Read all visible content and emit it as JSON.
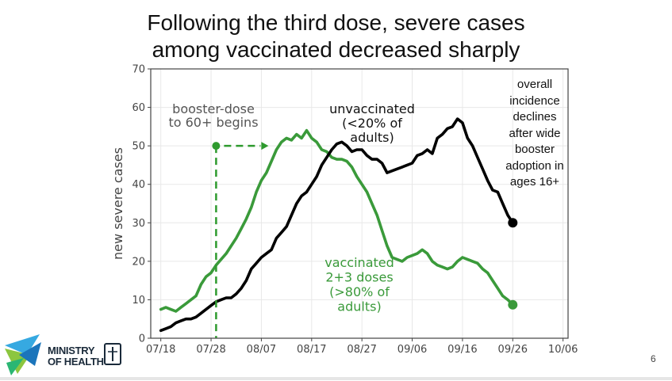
{
  "title": {
    "line1": "Following the third dose, severe cases",
    "line2": "among vaccinated decreased sharply"
  },
  "side_note": [
    "overall",
    "incidence",
    "declines",
    "after wide",
    "booster",
    "adoption in",
    "ages 16+"
  ],
  "page_number": "6",
  "logo": {
    "line1": "MINISTRY",
    "line2": "OF HEALTH"
  },
  "colors": {
    "unvaccinated": "#000000",
    "vaccinated": "#3a9a3a",
    "booster": "#2e9a2e",
    "axis": "#444444",
    "grid": "#e8e8e8"
  },
  "chart_data": {
    "type": "line",
    "ylabel": "new severe cases",
    "ylim": [
      0,
      70
    ],
    "yticks": [
      0,
      10,
      20,
      30,
      40,
      50,
      60,
      70
    ],
    "xlim": [
      -2,
      81
    ],
    "xticks": [
      {
        "day": 0,
        "label": "07/18"
      },
      {
        "day": 10,
        "label": "07/28"
      },
      {
        "day": 20,
        "label": "08/07"
      },
      {
        "day": 30,
        "label": "08/17"
      },
      {
        "day": 40,
        "label": "08/27"
      },
      {
        "day": 50,
        "label": "09/06"
      },
      {
        "day": 60,
        "label": "09/16"
      },
      {
        "day": 70,
        "label": "09/26"
      },
      {
        "day": 80,
        "label": "10/06"
      }
    ],
    "series": [
      {
        "key": "unvaccinated",
        "label_lines": [
          "unvaccinated",
          "(<20% of",
          "adults)"
        ],
        "values": [
          [
            0,
            2
          ],
          [
            1,
            2.5
          ],
          [
            2,
            3
          ],
          [
            3,
            4
          ],
          [
            4,
            4.5
          ],
          [
            5,
            5
          ],
          [
            6,
            5
          ],
          [
            7,
            5.5
          ],
          [
            8,
            6.5
          ],
          [
            9,
            7.5
          ],
          [
            10,
            8.5
          ],
          [
            11,
            9.5
          ],
          [
            12,
            10
          ],
          [
            13,
            10.5
          ],
          [
            14,
            10.5
          ],
          [
            15,
            11.5
          ],
          [
            16,
            13
          ],
          [
            17,
            15
          ],
          [
            18,
            18
          ],
          [
            19,
            19.5
          ],
          [
            20,
            21
          ],
          [
            21,
            22
          ],
          [
            22,
            23
          ],
          [
            23,
            26
          ],
          [
            24,
            27.5
          ],
          [
            25,
            29
          ],
          [
            26,
            32
          ],
          [
            27,
            35
          ],
          [
            28,
            37
          ],
          [
            29,
            38
          ],
          [
            30,
            40
          ],
          [
            31,
            42
          ],
          [
            32,
            45
          ],
          [
            33,
            47
          ],
          [
            34,
            49
          ],
          [
            35,
            50.5
          ],
          [
            36,
            51
          ],
          [
            37,
            50
          ],
          [
            38,
            48.5
          ],
          [
            39,
            49
          ],
          [
            40,
            49
          ],
          [
            41,
            47.5
          ],
          [
            42,
            46.5
          ],
          [
            43,
            46.5
          ],
          [
            44,
            45.5
          ],
          [
            45,
            43
          ],
          [
            46,
            43.5
          ],
          [
            47,
            44
          ],
          [
            48,
            44.5
          ],
          [
            49,
            45
          ],
          [
            50,
            45.5
          ],
          [
            51,
            47.5
          ],
          [
            52,
            48
          ],
          [
            53,
            49
          ],
          [
            54,
            48
          ],
          [
            55,
            52
          ],
          [
            56,
            53
          ],
          [
            57,
            54.5
          ],
          [
            58,
            55
          ],
          [
            59,
            57
          ],
          [
            60,
            56
          ],
          [
            61,
            52
          ],
          [
            62,
            50
          ],
          [
            63,
            47
          ],
          [
            64,
            44
          ],
          [
            65,
            41
          ],
          [
            66,
            38.5
          ],
          [
            67,
            38
          ],
          [
            68,
            35
          ],
          [
            69,
            32
          ],
          [
            70,
            30
          ]
        ],
        "end_value": 30
      },
      {
        "key": "vaccinated",
        "label_lines": [
          "vaccinated",
          "2+3 doses",
          "(>80% of",
          "adults)"
        ],
        "values": [
          [
            0,
            7.5
          ],
          [
            1,
            8
          ],
          [
            2,
            7.5
          ],
          [
            3,
            7
          ],
          [
            4,
            8
          ],
          [
            5,
            9
          ],
          [
            6,
            10
          ],
          [
            7,
            11
          ],
          [
            8,
            14
          ],
          [
            9,
            16
          ],
          [
            10,
            17
          ],
          [
            11,
            19
          ],
          [
            12,
            20.5
          ],
          [
            13,
            22
          ],
          [
            14,
            24
          ],
          [
            15,
            26
          ],
          [
            16,
            28.5
          ],
          [
            17,
            31
          ],
          [
            18,
            34
          ],
          [
            19,
            38
          ],
          [
            20,
            41
          ],
          [
            21,
            43
          ],
          [
            22,
            46
          ],
          [
            23,
            49
          ],
          [
            24,
            51
          ],
          [
            25,
            52
          ],
          [
            26,
            51.5
          ],
          [
            27,
            53
          ],
          [
            28,
            52
          ],
          [
            29,
            54
          ],
          [
            30,
            52
          ],
          [
            31,
            51
          ],
          [
            32,
            49
          ],
          [
            33,
            48.5
          ],
          [
            34,
            47
          ],
          [
            35,
            46.5
          ],
          [
            36,
            46.5
          ],
          [
            37,
            46
          ],
          [
            38,
            44.5
          ],
          [
            39,
            42
          ],
          [
            40,
            40
          ],
          [
            41,
            38
          ],
          [
            42,
            35
          ],
          [
            43,
            32
          ],
          [
            44,
            28
          ],
          [
            45,
            24
          ],
          [
            46,
            21
          ],
          [
            47,
            20.5
          ],
          [
            48,
            20
          ],
          [
            49,
            21
          ],
          [
            50,
            21.5
          ],
          [
            51,
            22
          ],
          [
            52,
            23
          ],
          [
            53,
            22
          ],
          [
            54,
            20
          ],
          [
            55,
            19
          ],
          [
            56,
            18.5
          ],
          [
            57,
            18
          ],
          [
            58,
            18.5
          ],
          [
            59,
            20
          ],
          [
            60,
            21
          ],
          [
            61,
            20.5
          ],
          [
            62,
            20
          ],
          [
            63,
            19.5
          ],
          [
            64,
            18
          ],
          [
            65,
            17
          ],
          [
            66,
            15
          ],
          [
            67,
            13
          ],
          [
            68,
            11
          ],
          [
            69,
            10
          ],
          [
            70,
            8.7
          ]
        ],
        "end_value": 8.7
      }
    ],
    "annotations": [
      {
        "key": "booster",
        "label_lines": [
          "booster-dose",
          "to 60+ begins"
        ],
        "day": 11,
        "value": 50
      }
    ]
  }
}
